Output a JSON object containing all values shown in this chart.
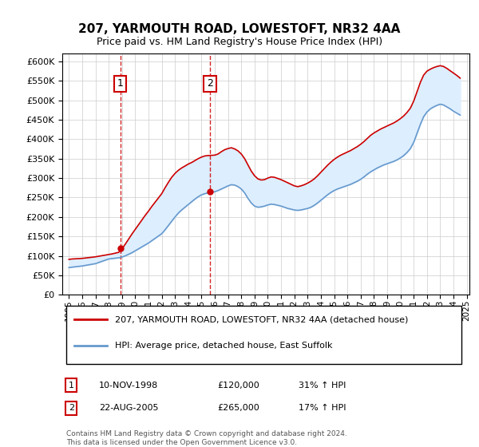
{
  "title": "207, YARMOUTH ROAD, LOWESTOFT, NR32 4AA",
  "subtitle": "Price paid vs. HM Land Registry's House Price Index (HPI)",
  "legend_line1": "207, YARMOUTH ROAD, LOWESTOFT, NR32 4AA (detached house)",
  "legend_line2": "HPI: Average price, detached house, East Suffolk",
  "transactions": [
    {
      "num": 1,
      "date": "10-NOV-1998",
      "price": 120000,
      "hpi_change": "31% ↑ HPI",
      "year": 1998.87
    },
    {
      "num": 2,
      "date": "22-AUG-2005",
      "price": 265000,
      "hpi_change": "17% ↑ HPI",
      "year": 2005.64
    }
  ],
  "years": [
    1995.0,
    1995.25,
    1995.5,
    1995.75,
    1996.0,
    1996.25,
    1996.5,
    1996.75,
    1997.0,
    1997.25,
    1997.5,
    1997.75,
    1998.0,
    1998.25,
    1998.5,
    1998.75,
    1999.0,
    1999.25,
    1999.5,
    1999.75,
    2000.0,
    2000.25,
    2000.5,
    2000.75,
    2001.0,
    2001.25,
    2001.5,
    2001.75,
    2002.0,
    2002.25,
    2002.5,
    2002.75,
    2003.0,
    2003.25,
    2003.5,
    2003.75,
    2004.0,
    2004.25,
    2004.5,
    2004.75,
    2005.0,
    2005.25,
    2005.5,
    2005.75,
    2006.0,
    2006.25,
    2006.5,
    2006.75,
    2007.0,
    2007.25,
    2007.5,
    2007.75,
    2008.0,
    2008.25,
    2008.5,
    2008.75,
    2009.0,
    2009.25,
    2009.5,
    2009.75,
    2010.0,
    2010.25,
    2010.5,
    2010.75,
    2011.0,
    2011.25,
    2011.5,
    2011.75,
    2012.0,
    2012.25,
    2012.5,
    2012.75,
    2013.0,
    2013.25,
    2013.5,
    2013.75,
    2014.0,
    2014.25,
    2014.5,
    2014.75,
    2015.0,
    2015.25,
    2015.5,
    2015.75,
    2016.0,
    2016.25,
    2016.5,
    2016.75,
    2017.0,
    2017.25,
    2017.5,
    2017.75,
    2018.0,
    2018.25,
    2018.5,
    2018.75,
    2019.0,
    2019.25,
    2019.5,
    2019.75,
    2020.0,
    2020.25,
    2020.5,
    2020.75,
    2021.0,
    2021.25,
    2021.5,
    2021.75,
    2022.0,
    2022.25,
    2022.5,
    2022.75,
    2023.0,
    2023.25,
    2023.5,
    2023.75,
    2024.0,
    2024.25,
    2024.5
  ],
  "hpi_values": [
    70000,
    71000,
    72000,
    73000,
    74000,
    75500,
    77000,
    78500,
    80000,
    83000,
    86000,
    89000,
    92000,
    93000,
    94000,
    95000,
    97000,
    100000,
    104000,
    108000,
    113000,
    118000,
    123000,
    128000,
    133000,
    139000,
    145000,
    151000,
    157000,
    167000,
    178000,
    189000,
    200000,
    210000,
    218000,
    225000,
    232000,
    239000,
    246000,
    252000,
    257000,
    260000,
    262000,
    263000,
    265000,
    268000,
    272000,
    276000,
    280000,
    283000,
    282000,
    278000,
    272000,
    262000,
    248000,
    236000,
    228000,
    225000,
    226000,
    228000,
    231000,
    233000,
    232000,
    230000,
    228000,
    225000,
    222000,
    220000,
    218000,
    217000,
    218000,
    220000,
    222000,
    225000,
    230000,
    236000,
    243000,
    250000,
    257000,
    263000,
    268000,
    272000,
    275000,
    278000,
    281000,
    284000,
    288000,
    292000,
    297000,
    303000,
    310000,
    316000,
    321000,
    326000,
    330000,
    334000,
    337000,
    340000,
    343000,
    347000,
    352000,
    358000,
    366000,
    376000,
    392000,
    415000,
    438000,
    458000,
    470000,
    478000,
    483000,
    487000,
    490000,
    488000,
    483000,
    478000,
    472000,
    467000,
    462000
  ],
  "red_values": [
    91000,
    92000,
    92500,
    93000,
    93500,
    94500,
    95500,
    96500,
    97500,
    99000,
    100500,
    102000,
    103500,
    105000,
    107000,
    109000,
    118000,
    130000,
    143000,
    156000,
    168000,
    180000,
    192000,
    204000,
    215000,
    227000,
    238000,
    249000,
    260000,
    275000,
    289000,
    302000,
    312000,
    320000,
    326000,
    331000,
    336000,
    340000,
    345000,
    350000,
    354000,
    357000,
    358000,
    358500,
    359000,
    362000,
    368000,
    373000,
    376000,
    378000,
    375000,
    370000,
    362000,
    350000,
    334000,
    318000,
    306000,
    298000,
    295000,
    296000,
    300000,
    303000,
    302000,
    299000,
    296000,
    292000,
    288000,
    284000,
    280000,
    278000,
    280000,
    283000,
    287000,
    292000,
    298000,
    306000,
    315000,
    324000,
    333000,
    341000,
    348000,
    354000,
    359000,
    363000,
    367000,
    371000,
    376000,
    381000,
    387000,
    394000,
    402000,
    410000,
    416000,
    421000,
    426000,
    430000,
    434000,
    438000,
    442000,
    447000,
    453000,
    460000,
    469000,
    480000,
    498000,
    522000,
    546000,
    565000,
    575000,
    580000,
    584000,
    587000,
    589000,
    587000,
    582000,
    576000,
    570000,
    564000,
    557000
  ],
  "ylim": [
    0,
    620000
  ],
  "xlim": [
    1994.5,
    2025.2
  ],
  "yticks": [
    0,
    50000,
    100000,
    150000,
    200000,
    250000,
    300000,
    350000,
    400000,
    450000,
    500000,
    550000,
    600000
  ],
  "xtick_years": [
    1995,
    1996,
    1997,
    1998,
    1999,
    2000,
    2001,
    2002,
    2003,
    2004,
    2005,
    2006,
    2007,
    2008,
    2009,
    2010,
    2011,
    2012,
    2013,
    2014,
    2015,
    2016,
    2017,
    2018,
    2019,
    2020,
    2021,
    2022,
    2023,
    2024,
    2025
  ],
  "red_color": "#cc0000",
  "blue_color": "#6699cc",
  "fill_color": "#ddeeff",
  "grid_color": "#cccccc",
  "bg_color": "#ffffff",
  "marker_box_color": "#cc0000",
  "vline_color": "#cc0000",
  "footnote": "Contains HM Land Registry data © Crown copyright and database right 2024.\nThis data is licensed under the Open Government Licence v3.0."
}
